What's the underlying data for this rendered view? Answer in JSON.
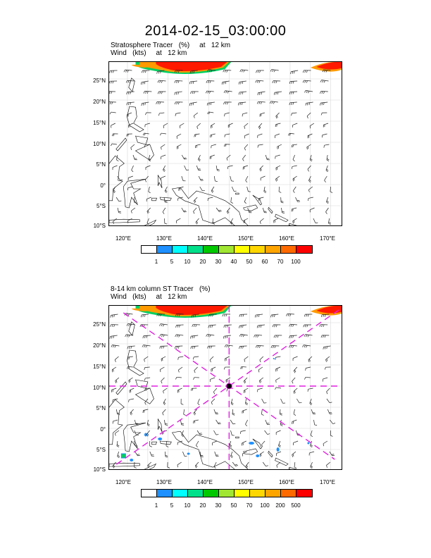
{
  "page": {
    "title": "2014-02-15_03:00:00"
  },
  "panels": [
    {
      "id": "top",
      "subtitle_line1": "Stratosphere Tracer   (%)     at   12 km",
      "subtitle_line2": "Wind   (kts)     at   12 km",
      "lat_labels": [
        "25°N",
        "20°N",
        "15°N",
        "10°N",
        "5°N",
        "0°",
        "5°S",
        "10°S"
      ],
      "lon_labels": [
        "120°E",
        "130°E",
        "140°E",
        "150°E",
        "160°E",
        "170°E"
      ],
      "colorbar_labels": [
        "1",
        "5",
        "10",
        "20",
        "30",
        "40",
        "50",
        "60",
        "70",
        "100"
      ],
      "colorbar_colors": [
        "#ffffff",
        "#1e90ff",
        "#00ffff",
        "#00e08a",
        "#00c800",
        "#a0e632",
        "#ffff00",
        "#ffd700",
        "#ffa500",
        "#ff6a00",
        "#ff0000"
      ],
      "has_cross_section_lines": false
    },
    {
      "id": "bottom",
      "subtitle_line1": "8-14 km column ST Tracer   (%)",
      "subtitle_line2": "Wind   (kts)     at   12 km",
      "lat_labels": [
        "25°N",
        "20°N",
        "15°N",
        "10°N",
        "5°N",
        "0°",
        "5°S",
        "10°S"
      ],
      "lon_labels": [
        "120°E",
        "130°E",
        "140°E",
        "150°E",
        "160°E",
        "170°E"
      ],
      "colorbar_labels": [
        "1",
        "5",
        "10",
        "20",
        "30",
        "50",
        "70",
        "100",
        "200",
        "500"
      ],
      "colorbar_colors": [
        "#ffffff",
        "#1e90ff",
        "#00ffff",
        "#00e08a",
        "#00c800",
        "#a0e632",
        "#ffff00",
        "#ffd700",
        "#ffa500",
        "#ff6a00",
        "#ff0000"
      ],
      "has_cross_section_lines": true,
      "cross_center": {
        "lon": 145,
        "lat": 10
      }
    }
  ],
  "colors": {
    "tracer_red": "#ff1a00",
    "tracer_orange": "#ff9a00",
    "tracer_green": "#00d060",
    "tracer_blue": "#1e90ff",
    "cross_line": "#e020e0"
  }
}
